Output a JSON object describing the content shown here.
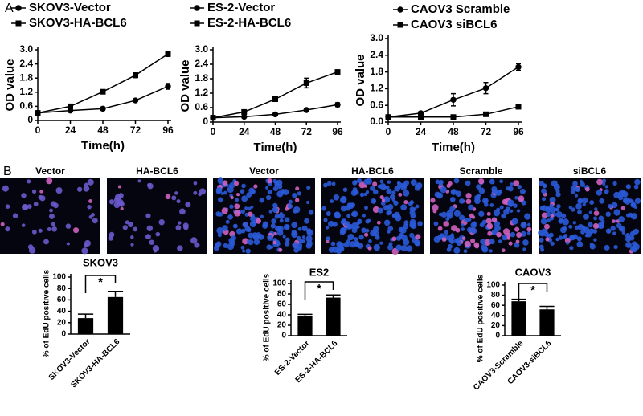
{
  "panel_labels": [
    "A",
    "B"
  ],
  "image_labels": [
    "Vector",
    "HA-BCL6",
    "Vector",
    "HA-BCL6",
    "Scramble",
    "siBCL6"
  ],
  "chart_data": [
    {
      "type": "line",
      "xlabel": "Time(h)",
      "ylabel": "OD value",
      "x": [
        0,
        24,
        48,
        72,
        96
      ],
      "xlim": [
        0,
        96
      ],
      "xticks": [
        0,
        24,
        48,
        72,
        96
      ],
      "ylim": [
        0,
        3
      ],
      "yticks": [
        0,
        0.6,
        1.2,
        1.8,
        2.4,
        {
          "value": 3,
          "label": "3.0"
        }
      ],
      "series": [
        {
          "name": "SKOV3-Vector",
          "color": "#000000",
          "marker": "circle",
          "values": [
            0.32,
            0.42,
            0.5,
            0.85,
            1.45
          ],
          "errors": [
            0.02,
            0.04,
            0.07,
            0.04,
            0.12
          ]
        },
        {
          "name": "SKOV3-HA-BCL6",
          "color": "#000000",
          "marker": "square",
          "values": [
            0.32,
            0.6,
            1.22,
            1.92,
            2.82
          ],
          "errors": [
            0.03,
            0.06,
            0.08,
            0.1,
            0.1
          ]
        }
      ]
    },
    {
      "type": "line",
      "xlabel": "Time(h)",
      "ylabel": "OD value",
      "x": [
        0,
        24,
        48,
        72,
        96
      ],
      "xlim": [
        0,
        96
      ],
      "xticks": [
        0,
        24,
        48,
        72,
        96
      ],
      "ylim": [
        0,
        3
      ],
      "yticks": [
        0,
        0.6,
        1.2,
        1.8,
        2.4,
        {
          "value": 3,
          "label": "3.0"
        }
      ],
      "series": [
        {
          "name": "ES-2-Vector",
          "color": "#000000",
          "marker": "circle",
          "values": [
            0.18,
            0.22,
            0.32,
            0.5,
            0.72
          ],
          "errors": [
            0.01,
            0.02,
            0.02,
            0.03,
            0.08
          ]
        },
        {
          "name": "ES-2-HA-BCL6",
          "color": "#000000",
          "marker": "square",
          "values": [
            0.18,
            0.42,
            0.95,
            1.62,
            2.08
          ],
          "errors": [
            0.02,
            0.03,
            0.04,
            0.2,
            0.05
          ]
        }
      ]
    },
    {
      "type": "line",
      "xlabel": "Time(h)",
      "ylabel": "OD value",
      "x": [
        0,
        24,
        48,
        72,
        96
      ],
      "xlim": [
        0,
        96
      ],
      "xticks": [
        0,
        24,
        48,
        72,
        96
      ],
      "ylim": [
        0,
        3
      ],
      "yticks": [
        {
          "value": 0,
          "label": "0.0"
        },
        0.6,
        1.2,
        1.8,
        2.4,
        {
          "value": 3,
          "label": "3.0"
        }
      ],
      "series": [
        {
          "name": "CAOV3 Scramble",
          "color": "#000000",
          "marker": "circle",
          "values": [
            0.18,
            0.32,
            0.8,
            1.22,
            1.98
          ],
          "errors": [
            0.02,
            0.05,
            0.22,
            0.2,
            0.12
          ]
        },
        {
          "name": "CAOV3 siBCL6",
          "color": "#000000",
          "marker": "square",
          "values": [
            0.18,
            0.18,
            0.18,
            0.28,
            0.55
          ],
          "errors": [
            0.02,
            0.02,
            0.02,
            0.03,
            0.03
          ]
        }
      ]
    },
    {
      "type": "bar",
      "title": "SKOV3",
      "ylabel": "% of EdU positive cells",
      "annotation": "*",
      "categories": [
        "SKOV3-Vector",
        "SKOV3-HA-BCL6"
      ],
      "values": [
        28,
        65
      ],
      "errors": [
        7,
        10
      ],
      "color": "#000000",
      "ylim": [
        0,
        100
      ],
      "yticks": [
        0,
        20,
        40,
        60,
        80,
        100
      ]
    },
    {
      "type": "bar",
      "title": "ES2",
      "ylabel": "% of EdU positive cells",
      "annotation": "*",
      "categories": [
        "ES-2-Vector",
        "ES-2-HA-BCL6"
      ],
      "values": [
        38,
        73
      ],
      "errors": [
        3,
        5
      ],
      "color": "#000000",
      "ylim": [
        0,
        100
      ],
      "yticks": [
        0,
        20,
        40,
        60,
        80,
        100
      ]
    },
    {
      "type": "bar",
      "title": "CAOV3",
      "ylabel": "% of EdU positive cells",
      "annotation": "*",
      "categories": [
        "CAOV3-Scramble",
        "CAOV3-siBCL6"
      ],
      "values": [
        68,
        52
      ],
      "errors": [
        4,
        6
      ],
      "color": "#000000",
      "ylim": [
        0,
        100
      ],
      "yticks": [
        0,
        20,
        40,
        60,
        80,
        100
      ]
    }
  ]
}
